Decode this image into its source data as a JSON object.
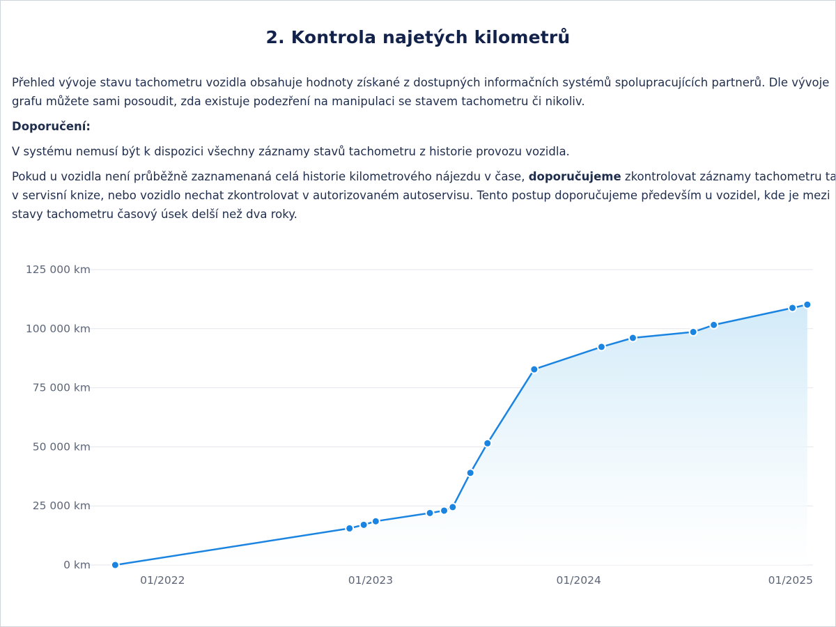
{
  "section_title": "2. Kontrola najetých kilometrů",
  "intro": {
    "line1": "Přehled vývoje stavu tachometru vozidla obsahuje hodnoty získané z dostupných informačních systémů spolupracujících partnerů. Dle vývoje",
    "line2": "grafu můžete sami posoudit, zda existuje podezření na manipulaci se stavem tachometru či nikoliv."
  },
  "recommendation_heading": "Doporučení:",
  "note": "V systému nemusí být k dispozici všechny záznamy stavů tachometru z historie provozu vozidla.",
  "advice": {
    "line1_before": "Pokud u vozidla není průběžně zaznamenaná celá historie kilometrového nájezdu v čase,",
    "line1_bold": "doporučujeme",
    "line1_after": "zkontrolovat záznamy tachometru také",
    "line2": "v servisní knize, nebo vozidlo nechat zkontrolovat v autorizovaném autoservisu. Tento postup doporučujeme především u vozidel, kde je mezi",
    "line3": "stavy tachometru časový úsek delší než dva roky."
  },
  "colors": {
    "line": "#1a84e0",
    "point": "#1a84e0",
    "point_outline": "#ffffff",
    "area_top": "#cfe9f8",
    "grid": "#e3e6eb",
    "axis_text": "#5c6577"
  },
  "chart_data": {
    "type": "area",
    "x_type": "date",
    "y_unit": "km",
    "ylim": [
      0,
      125000
    ],
    "y_ticks": [
      0,
      25000,
      50000,
      75000,
      100000,
      125000
    ],
    "y_tick_labels": [
      "0 km",
      "25 000 km",
      "50 000 km",
      "75 000 km",
      "100 000 km",
      "125 000 km"
    ],
    "x_tick_dates": [
      "2022-01-01",
      "2023-01-01",
      "2024-01-01",
      "2025-01-01"
    ],
    "x_tick_labels": [
      "01/2022",
      "01/2023",
      "01/2024",
      "01/2025"
    ],
    "xlim": [
      "2021-09-20",
      "2025-02-15"
    ],
    "grid": true,
    "legend": "none",
    "x": [
      "2021-10-10",
      "2022-11-25",
      "2022-12-20",
      "2023-01-10",
      "2023-04-15",
      "2023-05-10",
      "2023-05-25",
      "2023-06-25",
      "2023-07-25",
      "2023-10-15",
      "2024-02-10",
      "2024-04-05",
      "2024-07-20",
      "2024-08-25",
      "2025-01-10",
      "2025-02-05"
    ],
    "values": [
      0,
      15500,
      17000,
      18500,
      22000,
      23000,
      24500,
      39000,
      51500,
      82800,
      92300,
      96100,
      98600,
      101600,
      108800,
      110200
    ]
  }
}
